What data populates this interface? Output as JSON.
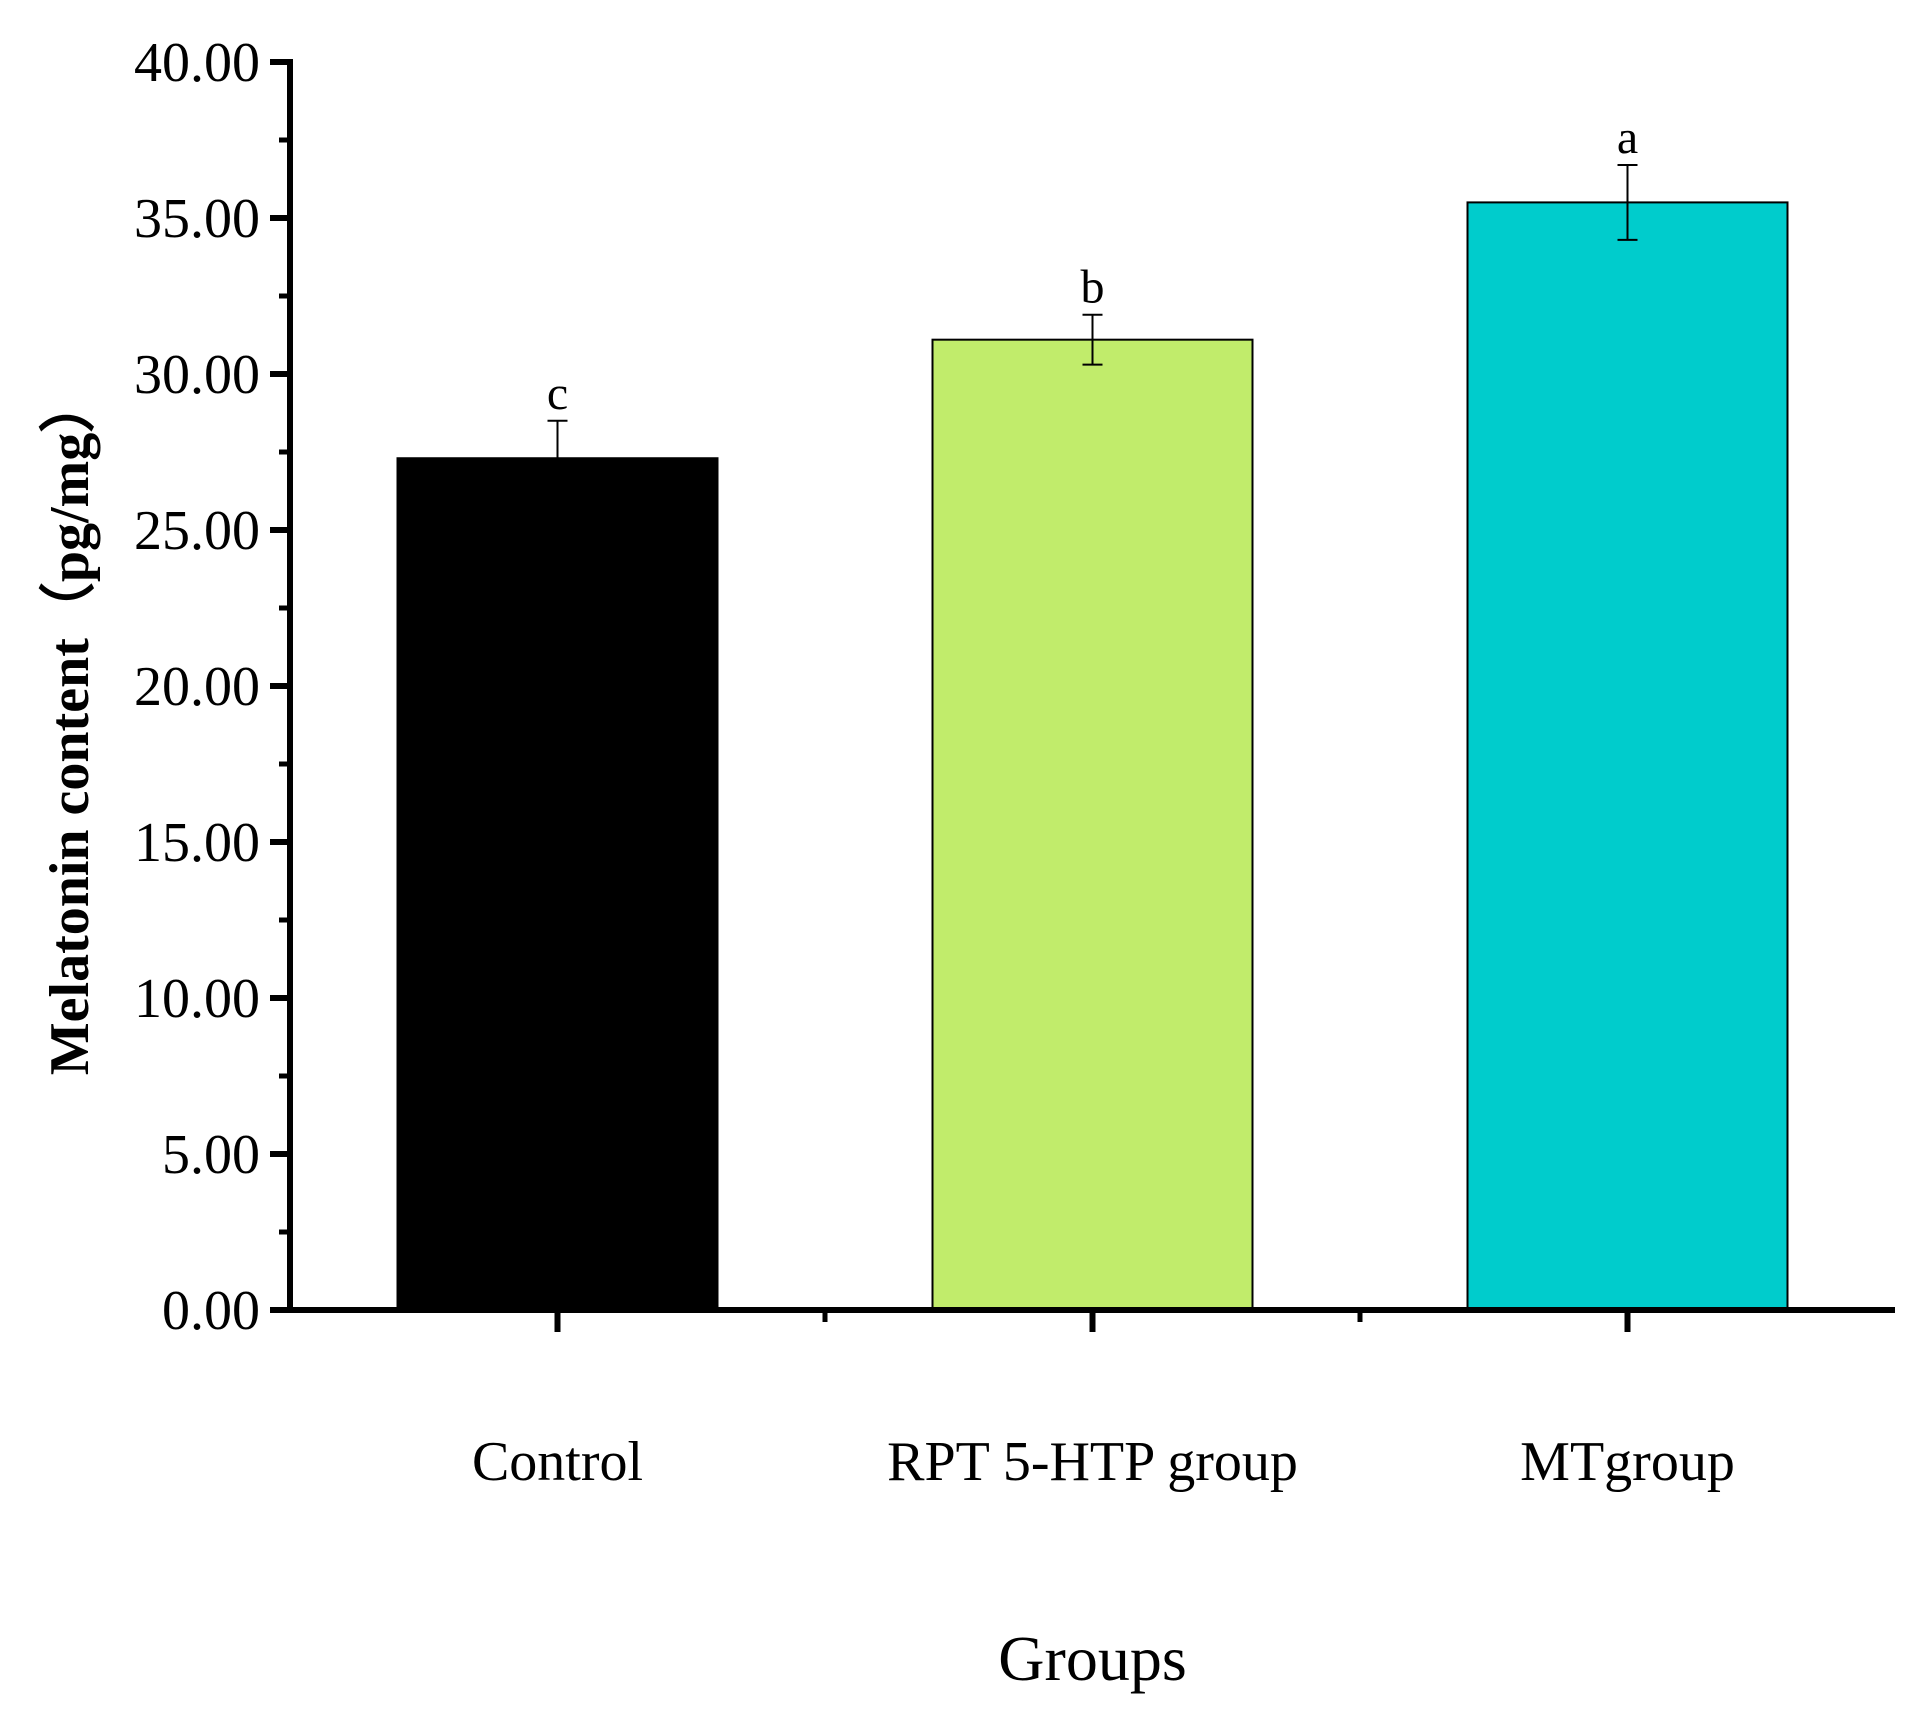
{
  "chart_data": {
    "type": "bar",
    "title": "",
    "xlabel": "Groups",
    "ylabel": "Melatonin content（pg/mg）",
    "ylim": [
      0,
      40
    ],
    "ytick_step": 5,
    "ytick_labels": [
      "0.00",
      "5.00",
      "10.00",
      "15.00",
      "20.00",
      "25.00",
      "30.00",
      "35.00",
      "40.00"
    ],
    "categories": [
      "Control",
      "RPT 5-HTP group",
      "MTgroup"
    ],
    "values": [
      27.3,
      31.1,
      35.5
    ],
    "errors": [
      1.2,
      0.8,
      1.2
    ],
    "significance_labels": [
      "c",
      "b",
      "a"
    ],
    "colors": [
      "#000000",
      "#c1ec6b",
      "#00cccc"
    ],
    "grid": false,
    "legend": "none"
  }
}
